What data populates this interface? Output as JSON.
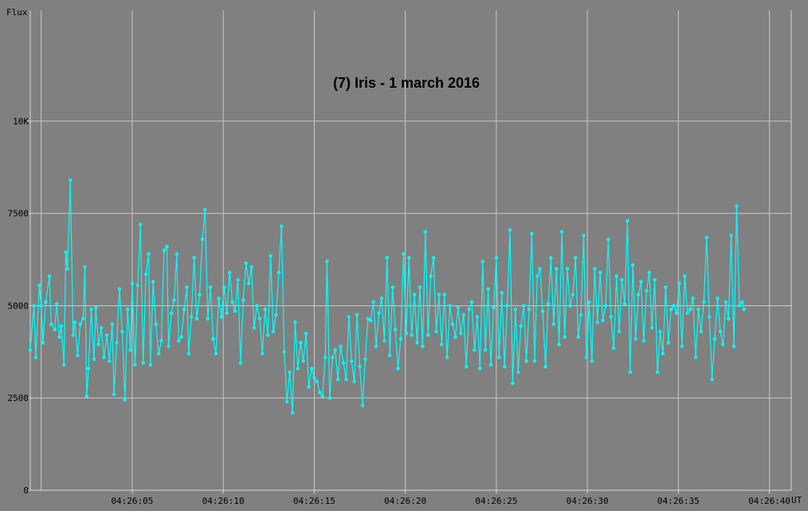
{
  "colors": {
    "background": "#808080",
    "grid": "#c8c8c8",
    "axis": "#d8d8d8",
    "series": "#00ffff",
    "text": "#000000"
  },
  "chart_data": {
    "type": "line",
    "title": "(7) Iris - 1 march 2016",
    "ylabel": "Flux",
    "xlabel": "UT",
    "x_unit": "seconds after 04:26:00 UT",
    "xlim": [
      -0.6,
      41.2
    ],
    "ylim": [
      0,
      13000
    ],
    "yticks": [
      {
        "value": 0,
        "label": "0"
      },
      {
        "value": 2500,
        "label": "2500"
      },
      {
        "value": 5000,
        "label": "5000"
      },
      {
        "value": 7500,
        "label": "7500"
      },
      {
        "value": 10000,
        "label": "10K"
      }
    ],
    "xticks": [
      {
        "value": 5,
        "label": "04:26:05"
      },
      {
        "value": 10,
        "label": "04:26:10"
      },
      {
        "value": 15,
        "label": "04:26:15"
      },
      {
        "value": 20,
        "label": "04:26:20"
      },
      {
        "value": 25,
        "label": "04:26:25"
      },
      {
        "value": 30,
        "label": "04:26:30"
      },
      {
        "value": 35,
        "label": "04:26:35"
      },
      {
        "value": 40,
        "label": "04:26:40"
      }
    ],
    "x_gridlines": [
      0,
      5,
      10,
      15,
      20,
      25,
      30,
      35,
      40
    ],
    "grid": true,
    "series": [
      {
        "color": "#00ffff",
        "points": [
          [
            -0.6,
            3800
          ],
          [
            -0.4,
            5000
          ],
          [
            -0.3,
            3600
          ],
          [
            -0.1,
            5550
          ],
          [
            0.0,
            5000
          ],
          [
            0.1,
            4000
          ],
          [
            0.25,
            5100
          ],
          [
            0.45,
            5800
          ],
          [
            0.55,
            4500
          ],
          [
            0.75,
            4350
          ],
          [
            0.85,
            5050
          ],
          [
            1.0,
            4150
          ],
          [
            1.1,
            4450
          ],
          [
            1.25,
            3400
          ],
          [
            1.35,
            6450
          ],
          [
            1.45,
            6000
          ],
          [
            1.6,
            8400
          ],
          [
            1.75,
            4200
          ],
          [
            1.85,
            4550
          ],
          [
            2.0,
            3650
          ],
          [
            2.15,
            4500
          ],
          [
            2.3,
            4650
          ],
          [
            2.4,
            6050
          ],
          [
            2.5,
            2550
          ],
          [
            2.6,
            3300
          ],
          [
            2.75,
            4900
          ],
          [
            2.9,
            3550
          ],
          [
            3.0,
            4950
          ],
          [
            3.15,
            3950
          ],
          [
            3.3,
            4400
          ],
          [
            3.45,
            3600
          ],
          [
            3.6,
            4200
          ],
          [
            3.75,
            3500
          ],
          [
            3.9,
            4500
          ],
          [
            4.0,
            2600
          ],
          [
            4.15,
            4000
          ],
          [
            4.3,
            5450
          ],
          [
            4.45,
            4300
          ],
          [
            4.6,
            2450
          ],
          [
            4.75,
            4900
          ],
          [
            4.9,
            3800
          ],
          [
            5.0,
            5600
          ],
          [
            5.15,
            3400
          ],
          [
            5.3,
            5550
          ],
          [
            5.45,
            7200
          ],
          [
            5.6,
            3450
          ],
          [
            5.75,
            5850
          ],
          [
            5.9,
            6400
          ],
          [
            6.0,
            3400
          ],
          [
            6.15,
            5650
          ],
          [
            6.3,
            4500
          ],
          [
            6.45,
            3700
          ],
          [
            6.6,
            4050
          ],
          [
            6.75,
            6500
          ],
          [
            6.9,
            6600
          ],
          [
            7.0,
            3900
          ],
          [
            7.15,
            4800
          ],
          [
            7.3,
            5150
          ],
          [
            7.45,
            6400
          ],
          [
            7.55,
            4050
          ],
          [
            7.7,
            4150
          ],
          [
            7.85,
            4900
          ],
          [
            8.0,
            5500
          ],
          [
            8.1,
            3700
          ],
          [
            8.25,
            4700
          ],
          [
            8.4,
            6300
          ],
          [
            8.55,
            4650
          ],
          [
            8.7,
            5300
          ],
          [
            8.85,
            6800
          ],
          [
            9.0,
            7600
          ],
          [
            9.15,
            4650
          ],
          [
            9.3,
            5500
          ],
          [
            9.45,
            4100
          ],
          [
            9.6,
            3700
          ],
          [
            9.75,
            5200
          ],
          [
            9.9,
            4700
          ],
          [
            10.05,
            5500
          ],
          [
            10.2,
            4800
          ],
          [
            10.35,
            5900
          ],
          [
            10.5,
            5100
          ],
          [
            10.65,
            4850
          ],
          [
            10.8,
            5700
          ],
          [
            10.95,
            3450
          ],
          [
            11.1,
            5150
          ],
          [
            11.25,
            6150
          ],
          [
            11.4,
            5600
          ],
          [
            11.55,
            6050
          ],
          [
            11.7,
            4400
          ],
          [
            11.85,
            5000
          ],
          [
            12.0,
            4650
          ],
          [
            12.15,
            3700
          ],
          [
            12.3,
            4900
          ],
          [
            12.45,
            4200
          ],
          [
            12.6,
            6350
          ],
          [
            12.75,
            4300
          ],
          [
            12.9,
            4750
          ],
          [
            13.05,
            5900
          ],
          [
            13.2,
            7150
          ],
          [
            13.35,
            3750
          ],
          [
            13.5,
            2400
          ],
          [
            13.65,
            3200
          ],
          [
            13.8,
            2100
          ],
          [
            13.95,
            4550
          ],
          [
            14.1,
            3300
          ],
          [
            14.25,
            4000
          ],
          [
            14.4,
            3500
          ],
          [
            14.55,
            4250
          ],
          [
            14.7,
            2800
          ],
          [
            14.85,
            3300
          ],
          [
            15.0,
            3050
          ],
          [
            15.15,
            2950
          ],
          [
            15.3,
            2650
          ],
          [
            15.45,
            2550
          ],
          [
            15.6,
            3600
          ],
          [
            15.7,
            6200
          ],
          [
            15.85,
            2500
          ],
          [
            16.0,
            3600
          ],
          [
            16.15,
            3800
          ],
          [
            16.3,
            3000
          ],
          [
            16.45,
            3900
          ],
          [
            16.6,
            3450
          ],
          [
            16.75,
            3000
          ],
          [
            16.9,
            4700
          ],
          [
            17.05,
            3500
          ],
          [
            17.2,
            2950
          ],
          [
            17.35,
            4750
          ],
          [
            17.5,
            3350
          ],
          [
            17.65,
            2300
          ],
          [
            17.8,
            3550
          ],
          [
            17.95,
            4650
          ],
          [
            18.1,
            4600
          ],
          [
            18.25,
            5100
          ],
          [
            18.4,
            3900
          ],
          [
            18.55,
            4800
          ],
          [
            18.7,
            5200
          ],
          [
            18.85,
            4050
          ],
          [
            19.0,
            6300
          ],
          [
            19.15,
            3650
          ],
          [
            19.3,
            5500
          ],
          [
            19.45,
            4350
          ],
          [
            19.6,
            3300
          ],
          [
            19.75,
            4100
          ],
          [
            19.9,
            6400
          ],
          [
            20.05,
            4250
          ],
          [
            20.2,
            6300
          ],
          [
            20.35,
            4200
          ],
          [
            20.5,
            5300
          ],
          [
            20.65,
            4000
          ],
          [
            20.8,
            5500
          ],
          [
            20.95,
            3900
          ],
          [
            21.1,
            7000
          ],
          [
            21.25,
            4200
          ],
          [
            21.4,
            5800
          ],
          [
            21.55,
            6300
          ],
          [
            21.7,
            4300
          ],
          [
            21.85,
            5300
          ],
          [
            22.0,
            3950
          ],
          [
            22.15,
            5300
          ],
          [
            22.3,
            3600
          ],
          [
            22.45,
            5000
          ],
          [
            22.6,
            4500
          ],
          [
            22.75,
            4150
          ],
          [
            22.9,
            4950
          ],
          [
            23.05,
            4250
          ],
          [
            23.2,
            4750
          ],
          [
            23.35,
            3350
          ],
          [
            23.5,
            4900
          ],
          [
            23.65,
            5100
          ],
          [
            23.8,
            3800
          ],
          [
            23.95,
            4700
          ],
          [
            24.1,
            3300
          ],
          [
            24.25,
            6200
          ],
          [
            24.4,
            3800
          ],
          [
            24.55,
            5450
          ],
          [
            24.7,
            3400
          ],
          [
            24.85,
            4950
          ],
          [
            25.0,
            6300
          ],
          [
            25.15,
            3600
          ],
          [
            25.3,
            5350
          ],
          [
            25.45,
            3350
          ],
          [
            25.6,
            5000
          ],
          [
            25.75,
            7050
          ],
          [
            25.9,
            2900
          ],
          [
            26.05,
            4900
          ],
          [
            26.2,
            3200
          ],
          [
            26.35,
            4450
          ],
          [
            26.5,
            5000
          ],
          [
            26.65,
            3500
          ],
          [
            26.8,
            4900
          ],
          [
            26.95,
            6950
          ],
          [
            27.1,
            3500
          ],
          [
            27.25,
            5800
          ],
          [
            27.4,
            6000
          ],
          [
            27.55,
            4850
          ],
          [
            27.7,
            3350
          ],
          [
            27.85,
            5050
          ],
          [
            28.0,
            6300
          ],
          [
            28.15,
            4500
          ],
          [
            28.3,
            6000
          ],
          [
            28.45,
            3950
          ],
          [
            28.6,
            7000
          ],
          [
            28.75,
            4150
          ],
          [
            28.9,
            6000
          ],
          [
            29.05,
            5000
          ],
          [
            29.2,
            5300
          ],
          [
            29.35,
            6300
          ],
          [
            29.5,
            4150
          ],
          [
            29.65,
            4750
          ],
          [
            29.8,
            6900
          ],
          [
            29.95,
            3600
          ],
          [
            30.1,
            5100
          ],
          [
            30.25,
            3500
          ],
          [
            30.4,
            6000
          ],
          [
            30.55,
            4550
          ],
          [
            30.7,
            5900
          ],
          [
            30.85,
            4600
          ],
          [
            31.0,
            5000
          ],
          [
            31.15,
            6800
          ],
          [
            31.3,
            4700
          ],
          [
            31.45,
            3850
          ],
          [
            31.6,
            5800
          ],
          [
            31.75,
            4300
          ],
          [
            31.9,
            5700
          ],
          [
            32.05,
            5050
          ],
          [
            32.2,
            7300
          ],
          [
            32.35,
            3200
          ],
          [
            32.5,
            6100
          ],
          [
            32.65,
            4100
          ],
          [
            32.8,
            5300
          ],
          [
            32.95,
            5650
          ],
          [
            33.1,
            4050
          ],
          [
            33.25,
            5400
          ],
          [
            33.4,
            5900
          ],
          [
            33.55,
            4400
          ],
          [
            33.7,
            5700
          ],
          [
            33.85,
            3200
          ],
          [
            34.0,
            4300
          ],
          [
            34.15,
            3700
          ],
          [
            34.3,
            5500
          ],
          [
            34.45,
            4000
          ],
          [
            34.6,
            4900
          ],
          [
            34.75,
            5000
          ],
          [
            34.9,
            4800
          ],
          [
            35.05,
            5600
          ],
          [
            35.2,
            3900
          ],
          [
            35.35,
            5800
          ],
          [
            35.5,
            4800
          ],
          [
            35.65,
            4900
          ],
          [
            35.8,
            5200
          ],
          [
            35.95,
            3600
          ],
          [
            36.1,
            4900
          ],
          [
            36.25,
            4300
          ],
          [
            36.4,
            5100
          ],
          [
            36.55,
            6850
          ],
          [
            36.7,
            4700
          ],
          [
            36.85,
            3000
          ],
          [
            37.0,
            4100
          ],
          [
            37.15,
            5200
          ],
          [
            37.3,
            4300
          ],
          [
            37.45,
            3950
          ],
          [
            37.6,
            5100
          ],
          [
            37.75,
            4650
          ],
          [
            37.9,
            6900
          ],
          [
            38.05,
            3900
          ],
          [
            38.2,
            7700
          ],
          [
            38.35,
            5000
          ],
          [
            38.5,
            5100
          ],
          [
            38.6,
            4900
          ]
        ]
      }
    ]
  }
}
